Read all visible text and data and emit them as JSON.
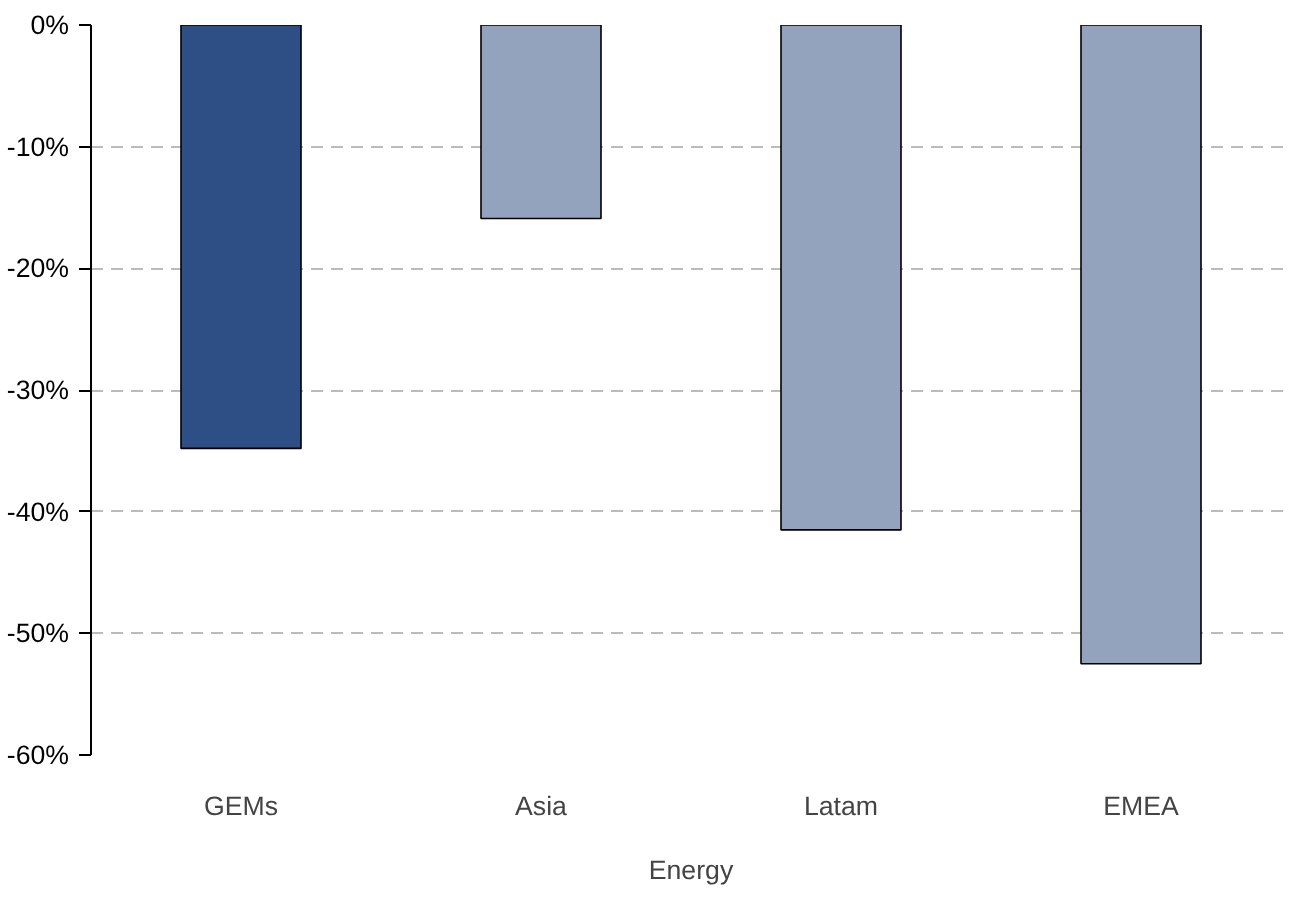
{
  "chart_data": {
    "type": "bar",
    "xlabel": "Energy",
    "categories": [
      "GEMs",
      "Asia",
      "Latam",
      "EMEA"
    ],
    "values": [
      -34.8,
      -15.9,
      -41.5,
      -52.5
    ],
    "colors": [
      "#2e4f86",
      "#94a3bd",
      "#94a3bd",
      "#94a3bd"
    ],
    "ylim": [
      -60,
      0
    ],
    "yticks": [
      {
        "value": 0,
        "label": "0%"
      },
      {
        "value": -10,
        "label": "-10%"
      },
      {
        "value": -20,
        "label": "-20%"
      },
      {
        "value": -30,
        "label": "-30%"
      },
      {
        "value": -40,
        "label": "-40%"
      },
      {
        "value": -50,
        "label": "-50%"
      },
      {
        "value": -60,
        "label": "-60%"
      }
    ],
    "grid": "y"
  }
}
